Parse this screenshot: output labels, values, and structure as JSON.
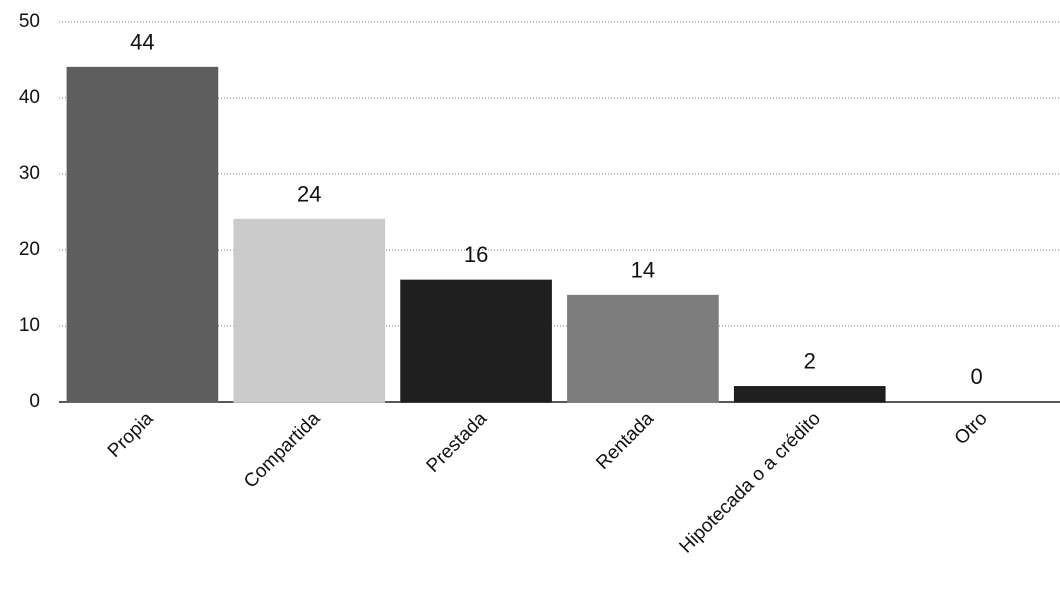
{
  "chart_data": {
    "type": "bar",
    "categories": [
      "Propia",
      "Compartida",
      "Prestada",
      "Rentada",
      "Hipotecada o a crédito",
      "Otro"
    ],
    "values": [
      44,
      24,
      16,
      14,
      2,
      0
    ],
    "colors": [
      "#5e5e5e",
      "#cbcbcb",
      "#1f1f1f",
      "#7d7d7d",
      "#1f1f1f",
      "#3a3a3a"
    ],
    "ylim": [
      0,
      50
    ],
    "yticks": [
      0,
      10,
      20,
      30,
      40,
      50
    ],
    "grid": true
  }
}
